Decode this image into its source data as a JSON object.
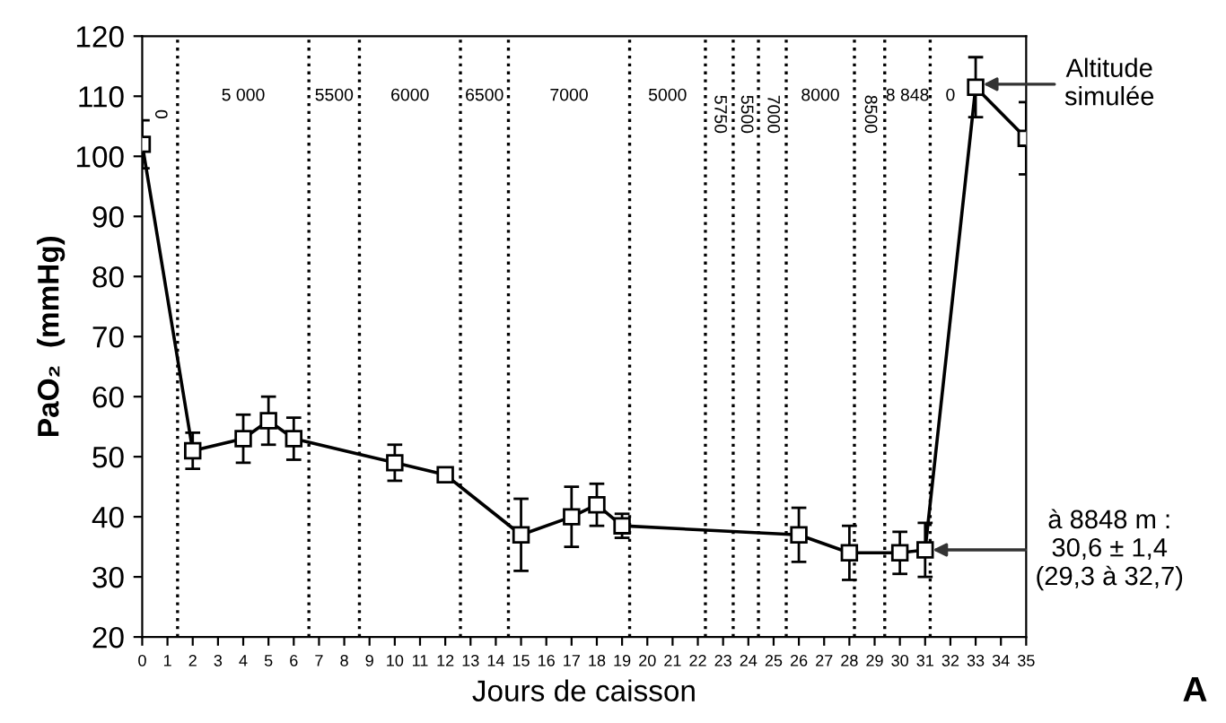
{
  "chart_data": {
    "type": "line",
    "xlabel": "Jours de caisson",
    "ylabel": "PaO₂  (mmHg)",
    "x": [
      0,
      2,
      4,
      5,
      6,
      10,
      12,
      15,
      17,
      18,
      19,
      26,
      28,
      30,
      31,
      33,
      35
    ],
    "series": [
      {
        "color": "#000000",
        "values": [
          102,
          51,
          53,
          56,
          53,
          49,
          47,
          37,
          40,
          42,
          38.5,
          37,
          34,
          34,
          34.5,
          111.5,
          103
        ],
        "errors": [
          4,
          3,
          4,
          4,
          3.5,
          3,
          1,
          6,
          5,
          3.5,
          2,
          4.5,
          4.5,
          3.5,
          4.5,
          5,
          6
        ]
      }
    ],
    "marker": "square",
    "line_style": "solid",
    "xlim": [
      0,
      35
    ],
    "xticks": [
      0,
      1,
      2,
      3,
      4,
      5,
      6,
      7,
      8,
      9,
      10,
      11,
      12,
      13,
      14,
      15,
      16,
      17,
      18,
      19,
      20,
      21,
      22,
      23,
      24,
      25,
      26,
      27,
      28,
      29,
      30,
      31,
      32,
      33,
      34,
      35
    ],
    "ylim": [
      20,
      120
    ],
    "yticks": [
      20,
      30,
      40,
      50,
      60,
      70,
      80,
      90,
      100,
      110,
      120
    ],
    "grid": false,
    "ref_lines": [
      {
        "axis": "x",
        "value": 1.4,
        "line_style": "dotted",
        "color": "#000000"
      },
      {
        "axis": "x",
        "value": 6.6,
        "line_style": "dotted",
        "color": "#000000"
      },
      {
        "axis": "x",
        "value": 8.6,
        "line_style": "dotted",
        "color": "#000000"
      },
      {
        "axis": "x",
        "value": 12.6,
        "line_style": "dotted",
        "color": "#000000"
      },
      {
        "axis": "x",
        "value": 14.5,
        "line_style": "dotted",
        "color": "#000000"
      },
      {
        "axis": "x",
        "value": 19.3,
        "line_style": "dotted",
        "color": "#000000"
      },
      {
        "axis": "x",
        "value": 22.3,
        "line_style": "dotted",
        "color": "#000000"
      },
      {
        "axis": "x",
        "value": 23.4,
        "line_style": "dotted",
        "color": "#000000"
      },
      {
        "axis": "x",
        "value": 24.4,
        "line_style": "dotted",
        "color": "#000000"
      },
      {
        "axis": "x",
        "value": 25.5,
        "line_style": "dotted",
        "color": "#000000"
      },
      {
        "axis": "x",
        "value": 28.2,
        "line_style": "dotted",
        "color": "#000000"
      },
      {
        "axis": "x",
        "value": 29.4,
        "line_style": "dotted",
        "color": "#000000"
      },
      {
        "axis": "x",
        "value": 31.2,
        "line_style": "dotted",
        "color": "#000000"
      }
    ],
    "annotations": [
      "0",
      "5 000",
      "5500",
      "6000",
      "6500",
      "7000",
      "5000",
      "5750",
      "5500",
      "7000",
      "8000",
      "8500",
      "8 848",
      "0",
      {
        "text": "Altitude\nsimulée",
        "x": 33,
        "y": 112
      },
      {
        "text": "à 8848 m :\n30,6 ± 1,4\n(29,3 à 32,7)",
        "x": 31,
        "y": 34.5
      },
      "A"
    ]
  }
}
